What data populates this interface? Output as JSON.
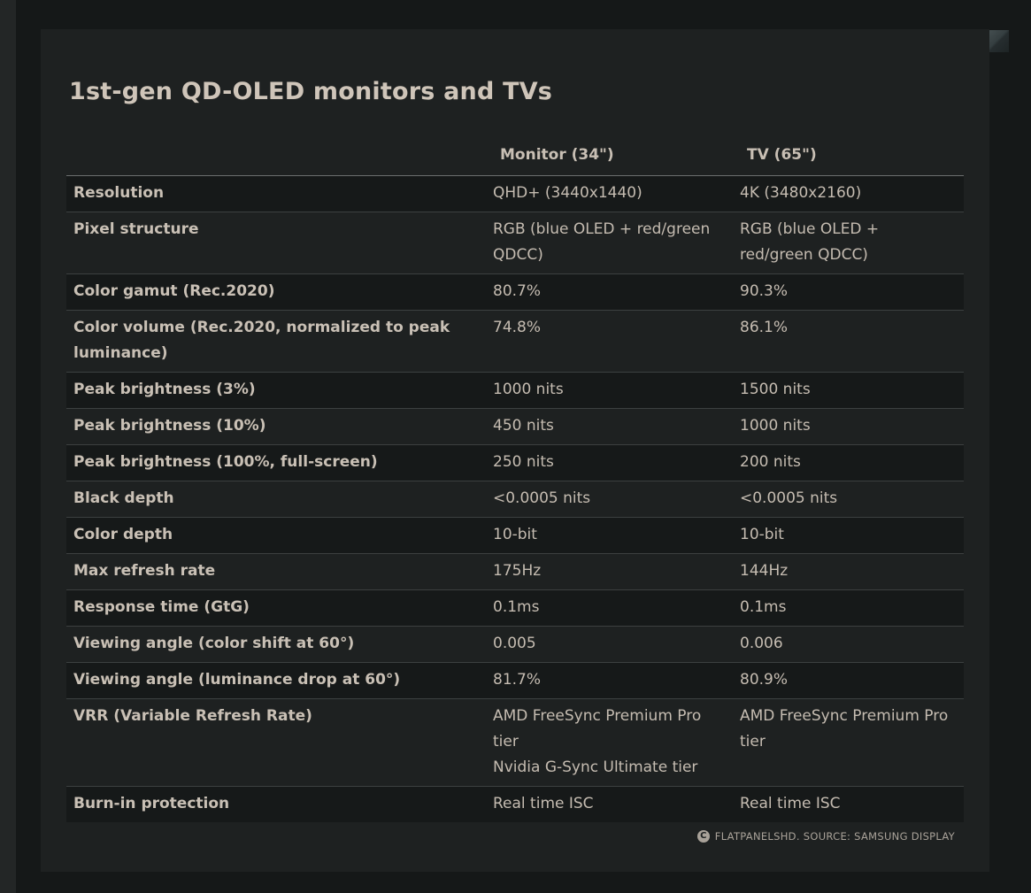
{
  "page": {
    "title": "1st-gen QD-OLED monitors and TVs"
  },
  "table": {
    "columns": [
      {
        "label": "Monitor (34\")"
      },
      {
        "label": "TV (65\")"
      }
    ],
    "rows": [
      {
        "label": "Resolution",
        "monitor": "QHD+ (3440x1440)",
        "tv": "4K (3480x2160)"
      },
      {
        "label": "Pixel structure",
        "monitor": "RGB (blue OLED + red/green QDCC)",
        "tv": "RGB (blue OLED + red/green QDCC)"
      },
      {
        "label": "Color gamut (Rec.2020)",
        "monitor": "80.7%",
        "tv": "90.3%"
      },
      {
        "label": "Color volume (Rec.2020, normalized to peak luminance)",
        "monitor": "74.8%",
        "tv": "86.1%"
      },
      {
        "label": "Peak brightness (3%)",
        "monitor": "1000 nits",
        "tv": "1500 nits"
      },
      {
        "label": "Peak brightness (10%)",
        "monitor": "450 nits",
        "tv": "1000 nits"
      },
      {
        "label": "Peak brightness (100%, full-screen)",
        "monitor": "250 nits",
        "tv": "200 nits"
      },
      {
        "label": "Black depth",
        "monitor": "<0.0005 nits",
        "tv": "<0.0005 nits"
      },
      {
        "label": "Color depth",
        "monitor": "10-bit",
        "tv": "10-bit"
      },
      {
        "label": "Max refresh rate",
        "monitor": "175Hz",
        "tv": "144Hz"
      },
      {
        "label": "Response time (GtG)",
        "monitor": "0.1ms",
        "tv": "0.1ms"
      },
      {
        "label": "Viewing angle (color shift at 60°)",
        "monitor": "0.005",
        "tv": "0.006"
      },
      {
        "label": "Viewing angle (luminance drop at 60°)",
        "monitor": "81.7%",
        "tv": "80.9%"
      },
      {
        "label": "VRR (Variable Refresh Rate)",
        "monitor": "AMD FreeSync Premium Pro tier\nNvidia G-Sync Ultimate tier",
        "tv": "AMD FreeSync Premium Pro tier"
      },
      {
        "label": "Burn-in protection",
        "monitor": "Real time ISC",
        "tv": "Real time ISC"
      }
    ]
  },
  "footer": {
    "icon_letter": "C",
    "text": "FLATPANELSHD. SOURCE: SAMSUNG DISPLAY"
  },
  "colors": {
    "page_background": "#151818",
    "left_strip": "#232626",
    "card_background": "#1e2121",
    "row_stripe": "#161919",
    "row_border": "#3c4040",
    "header_border": "#6d7070",
    "title_text": "#cfc5b9",
    "body_text": "#c5bcb1",
    "footer_text": "#a9a299"
  }
}
